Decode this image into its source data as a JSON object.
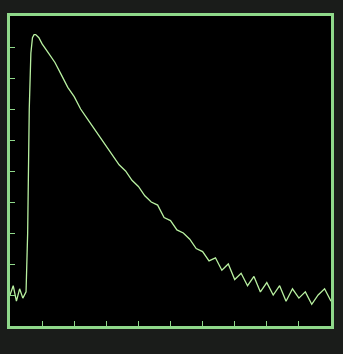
{
  "chart_data": {
    "type": "line",
    "color": "#b8f0a0",
    "tick_labels": false,
    "grid": false,
    "x": [
      0,
      1,
      2,
      3,
      4,
      5,
      5.5,
      6,
      6.5,
      7,
      7.5,
      8,
      9,
      10,
      12,
      14,
      16,
      18,
      20,
      22,
      24,
      26,
      28,
      30,
      32,
      34,
      36,
      38,
      40,
      42,
      44,
      46,
      48,
      50,
      52,
      54,
      56,
      58,
      60,
      62,
      64,
      66,
      68,
      70,
      72,
      74,
      76,
      78,
      80,
      82,
      84,
      86,
      88,
      90,
      92,
      94,
      96,
      98,
      100
    ],
    "values": [
      10,
      13,
      8,
      12,
      9,
      11,
      30,
      70,
      88,
      93,
      94,
      94,
      93,
      91,
      88,
      85,
      81,
      77,
      74,
      70,
      67,
      64,
      61,
      58,
      55,
      52,
      50,
      47,
      45,
      42,
      40,
      39,
      35,
      34,
      31,
      30,
      28,
      25,
      24,
      21,
      22,
      18,
      20,
      15,
      17,
      13,
      16,
      11,
      14,
      10,
      13,
      8,
      12,
      9,
      11,
      7,
      10,
      12,
      8
    ],
    "xlim": [
      0,
      100
    ],
    "ylim": [
      0,
      100
    ],
    "xticks": [
      0,
      10,
      20,
      30,
      40,
      50,
      60,
      70,
      80,
      90,
      100
    ],
    "yticks": [
      0,
      10,
      20,
      30,
      40,
      50,
      60,
      70,
      80,
      90,
      100
    ]
  }
}
